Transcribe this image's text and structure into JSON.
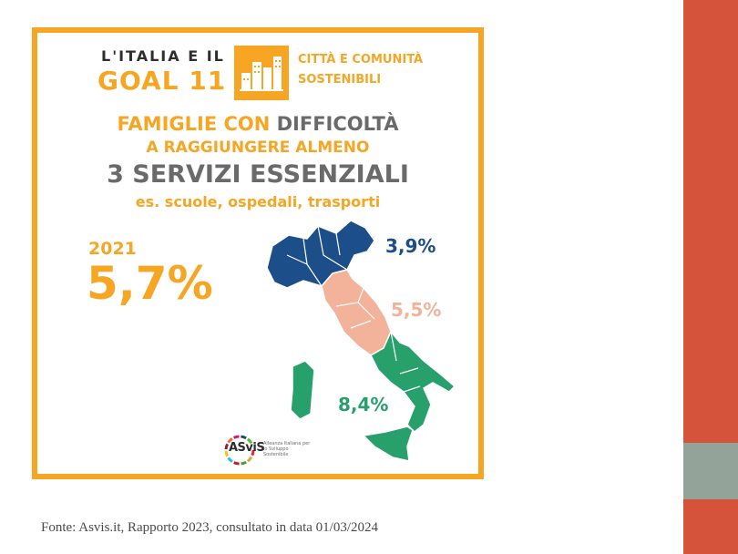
{
  "infographic": {
    "header_line1": "L'ITALIA E IL",
    "header_goal": "GOAL 11",
    "goal_name_line1": "CITTÀ E COMUNITÀ",
    "goal_name_line2": "SOSTENIBILI",
    "goal_icon": "city-buildings-icon",
    "title_part1": "FAMIGLIE CON",
    "title_part2": "DIFFICOLTÀ",
    "title_line2": "A RAGGIUNGERE ALMENO",
    "title_line3": "3 SERVIZI ESSENZIALI",
    "title_line4": "es. scuole, ospedali, trasporti",
    "year": "2021",
    "national_value": "5,7%",
    "north_value": "3,9%",
    "centre_value": "5,5%",
    "south_value": "8,4%",
    "logo_text": "ASviS",
    "logo_subtext": "Alleanza Italiana per lo Sviluppo Sostenibile"
  },
  "colors": {
    "accent_orange": "#f6a623",
    "north_blue": "#1c4e8a",
    "centre_peach": "#f3b39a",
    "south_green": "#27a06b",
    "side_red": "#d5533b",
    "side_grey": "#93a39a"
  },
  "footer": {
    "source": "Fonte: Asvis.it, Rapporto 2023, consultato in data 01/03/2024"
  }
}
